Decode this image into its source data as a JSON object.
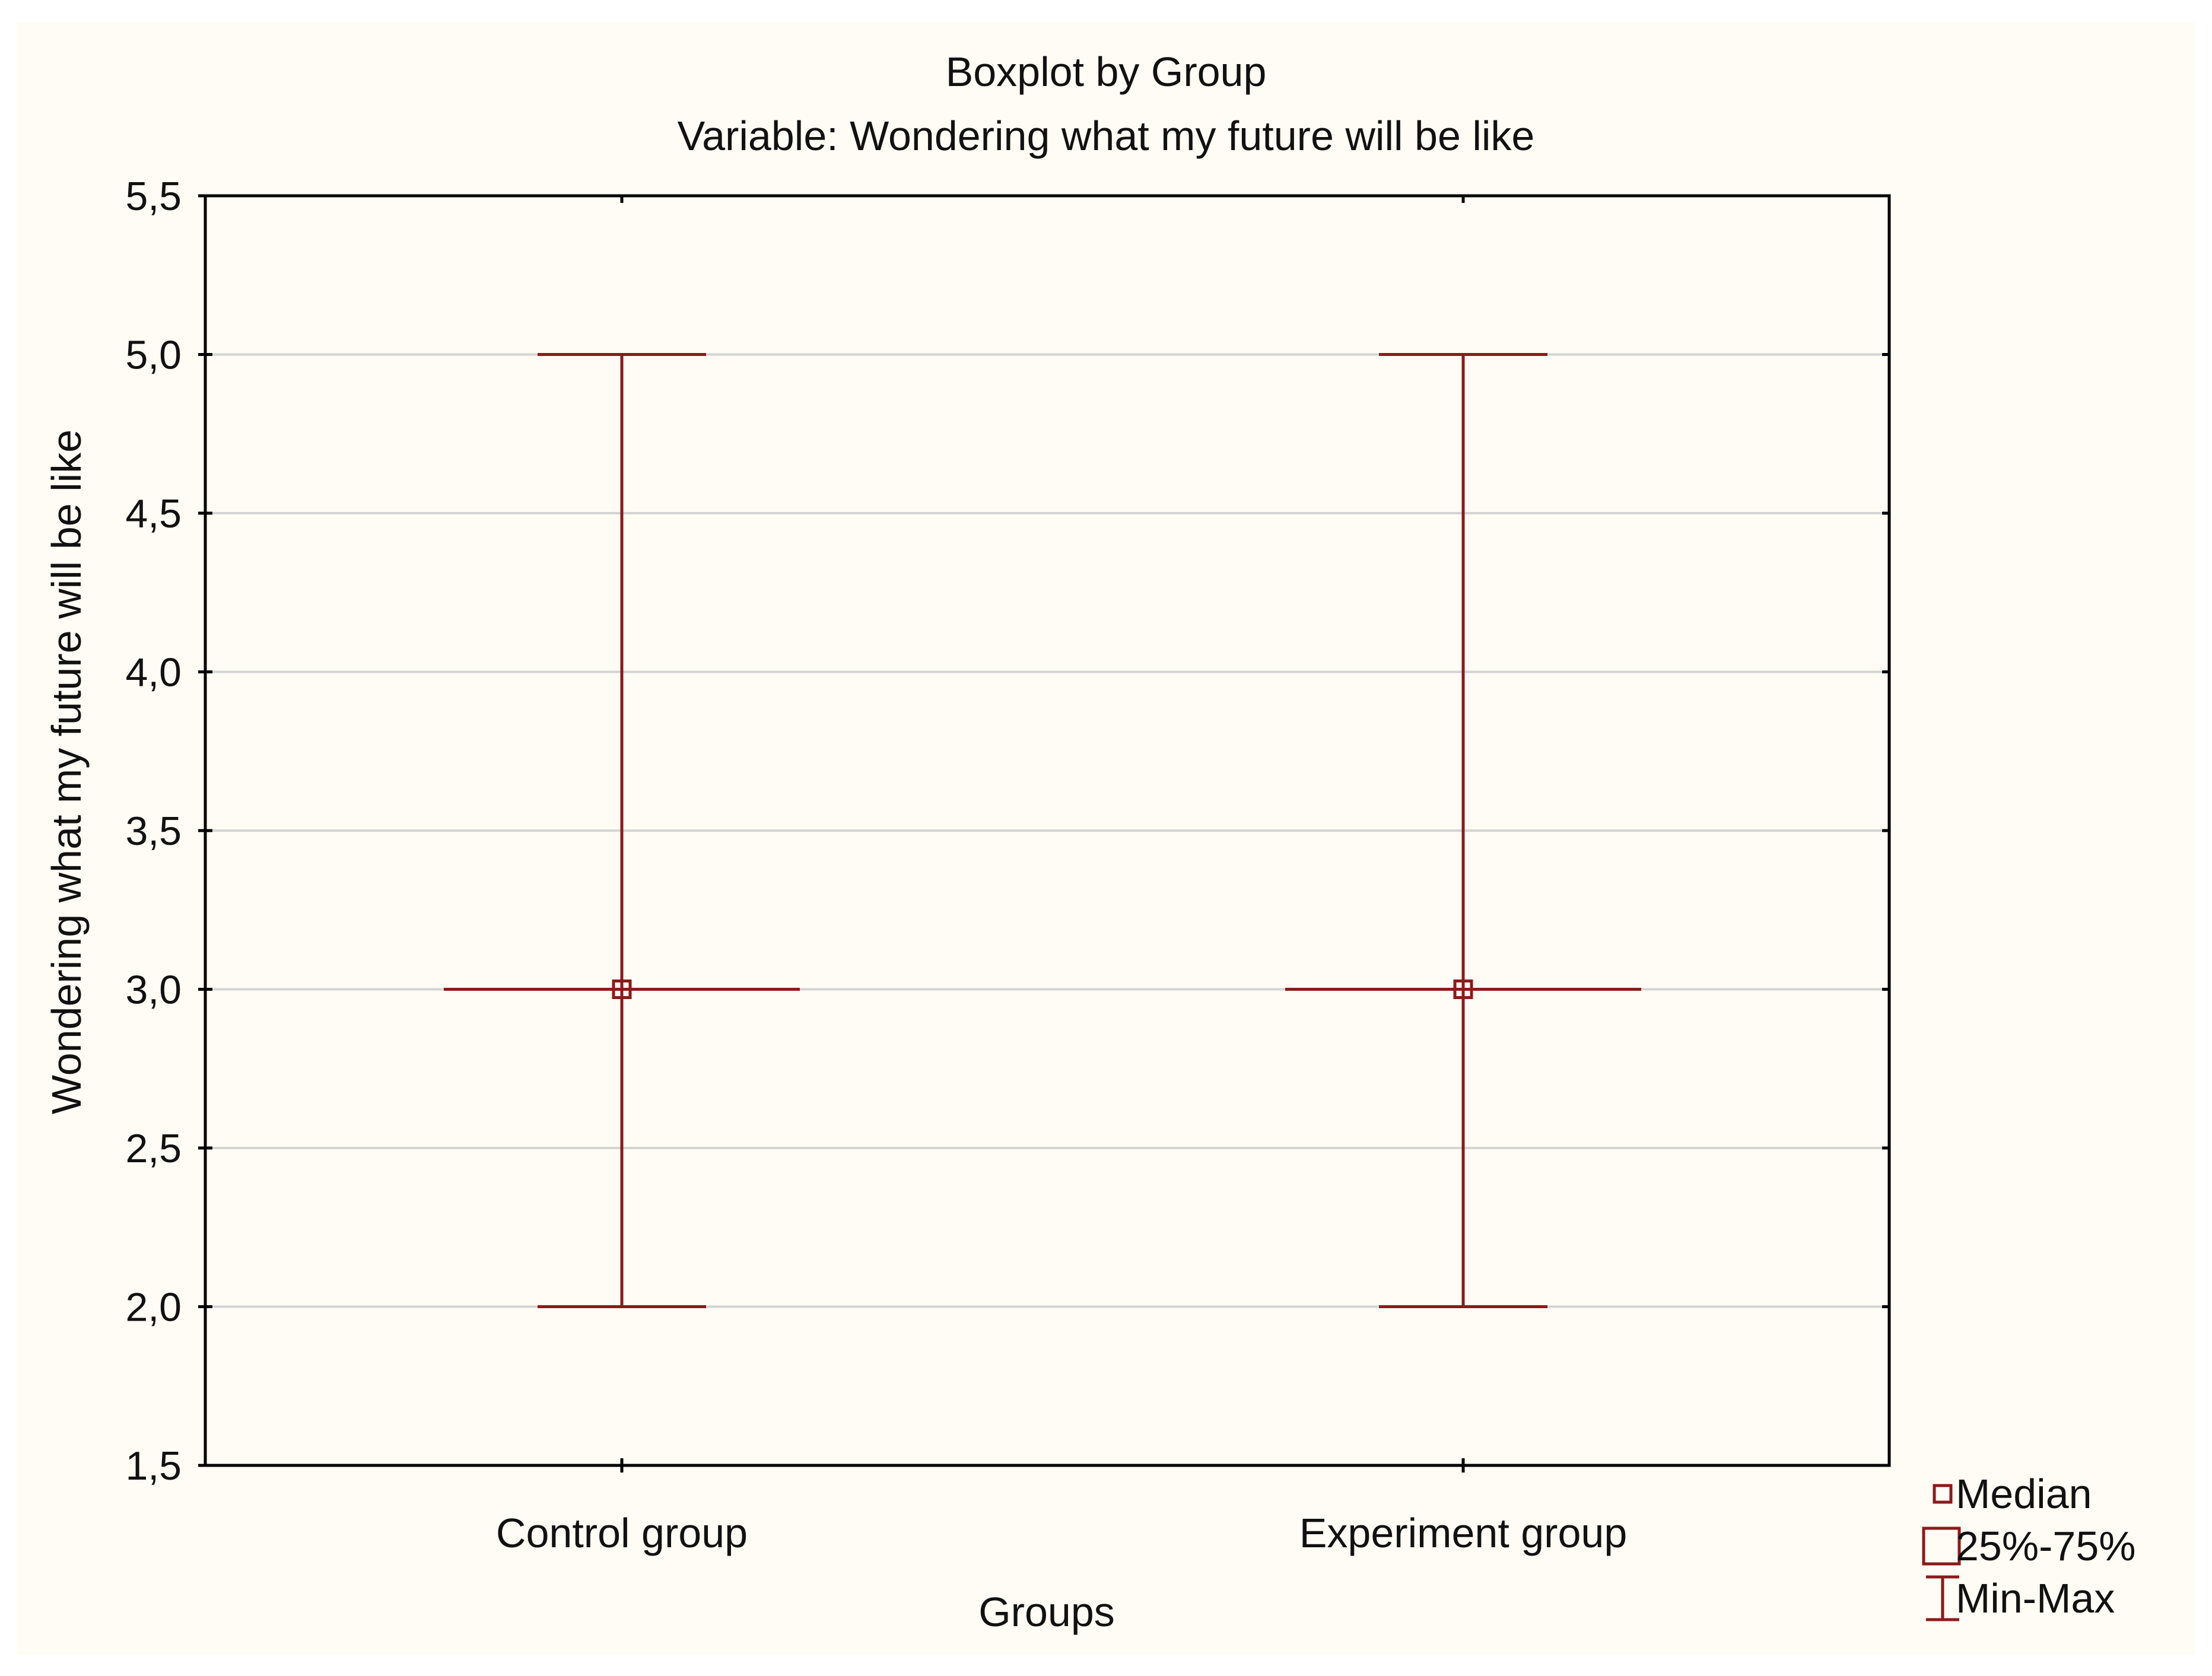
{
  "chart_data": {
    "type": "boxplot",
    "title": "Boxplot by Group",
    "subtitle": "Variable: Wondering what my future will be like",
    "xlabel": "Groups",
    "ylabel": "Wondering what my future will be like",
    "ylim": [
      1.5,
      5.5
    ],
    "yticks": [
      "1,5",
      "2,0",
      "2,5",
      "3,0",
      "3,5",
      "4,0",
      "4,5",
      "5,0",
      "5,5"
    ],
    "ytick_values": [
      1.5,
      2.0,
      2.5,
      3.0,
      3.5,
      4.0,
      4.5,
      5.0,
      5.5
    ],
    "grid": true,
    "categories": [
      "Control group",
      "Experiment group"
    ],
    "groups": [
      {
        "name": "Control group",
        "median": 3.0,
        "q1": 3.0,
        "q3": 3.0,
        "min": 2.0,
        "max": 5.0
      },
      {
        "name": "Experiment group",
        "median": 3.0,
        "q1": 3.0,
        "q3": 3.0,
        "min": 2.0,
        "max": 5.0
      }
    ],
    "legend": {
      "placement": "bottom-right",
      "items": [
        {
          "symbol": "small-square",
          "label": "Median"
        },
        {
          "symbol": "large-square",
          "label": "25%-75%"
        },
        {
          "symbol": "whisker",
          "label": "Min-Max"
        }
      ]
    },
    "colors": {
      "series": "#8b1a1a",
      "grid": "#d4d4d4",
      "axis": "#000000",
      "background": "#fefcf4"
    }
  }
}
